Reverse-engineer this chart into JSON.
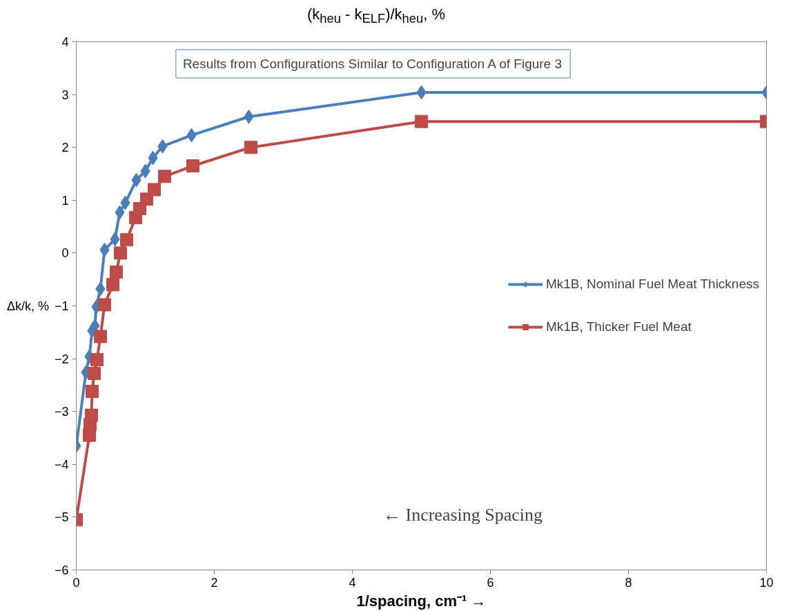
{
  "chart_data": {
    "type": "line",
    "title": "(k$_{heu}$ - k$_{ELF}$)/k$_{heu}$, %",
    "xlabel": "1/spacing, cm⁻¹ →",
    "ylabel": "Δk/k, %",
    "annotations": [
      "Results from Configurations Similar to Configuration A of Figure 3",
      "← Increasing Spacing"
    ],
    "series": [
      {
        "name": "Mk1B, Nominal Fuel Meat Thickness",
        "color": "#4a7ebb",
        "marker": "diamond",
        "x": [
          0,
          0.14,
          0.19,
          0.23,
          0.27,
          0.29,
          0.35,
          0.41,
          0.56,
          0.63,
          0.71,
          0.87,
          1.0,
          1.11,
          1.25,
          1.67,
          2.5,
          5,
          10
        ],
        "values": [
          -3.65,
          -2.26,
          -1.96,
          -1.47,
          -1.38,
          -1.02,
          -0.68,
          0.06,
          0.26,
          0.77,
          0.95,
          1.38,
          1.55,
          1.8,
          2.02,
          2.23,
          2.58,
          3.04,
          3.04
        ]
      },
      {
        "name": "Mk1B, Thicker Fuel Meat",
        "color": "#be4b48",
        "marker": "square",
        "x": [
          0,
          0.19,
          0.2,
          0.22,
          0.23,
          0.26,
          0.3,
          0.35,
          0.41,
          0.53,
          0.58,
          0.64,
          0.73,
          0.86,
          0.92,
          1.02,
          1.13,
          1.28,
          1.69,
          2.53,
          5,
          10
        ],
        "values": [
          -5.05,
          -3.45,
          -3.25,
          -3.07,
          -2.62,
          -2.28,
          -2.02,
          -1.58,
          -0.98,
          -0.6,
          -0.36,
          0.0,
          0.25,
          0.67,
          0.84,
          1.02,
          1.2,
          1.45,
          1.65,
          2.0,
          2.49,
          2.49
        ]
      }
    ],
    "xlim": [
      0,
      10
    ],
    "xticks": [
      0,
      2,
      4,
      6,
      8,
      10
    ],
    "ylim": [
      -6,
      4
    ],
    "yticks": [
      -6,
      -5,
      -4,
      -3,
      -2,
      -1,
      0,
      1,
      2,
      3,
      4
    ],
    "grid": false,
    "legend": "right"
  }
}
